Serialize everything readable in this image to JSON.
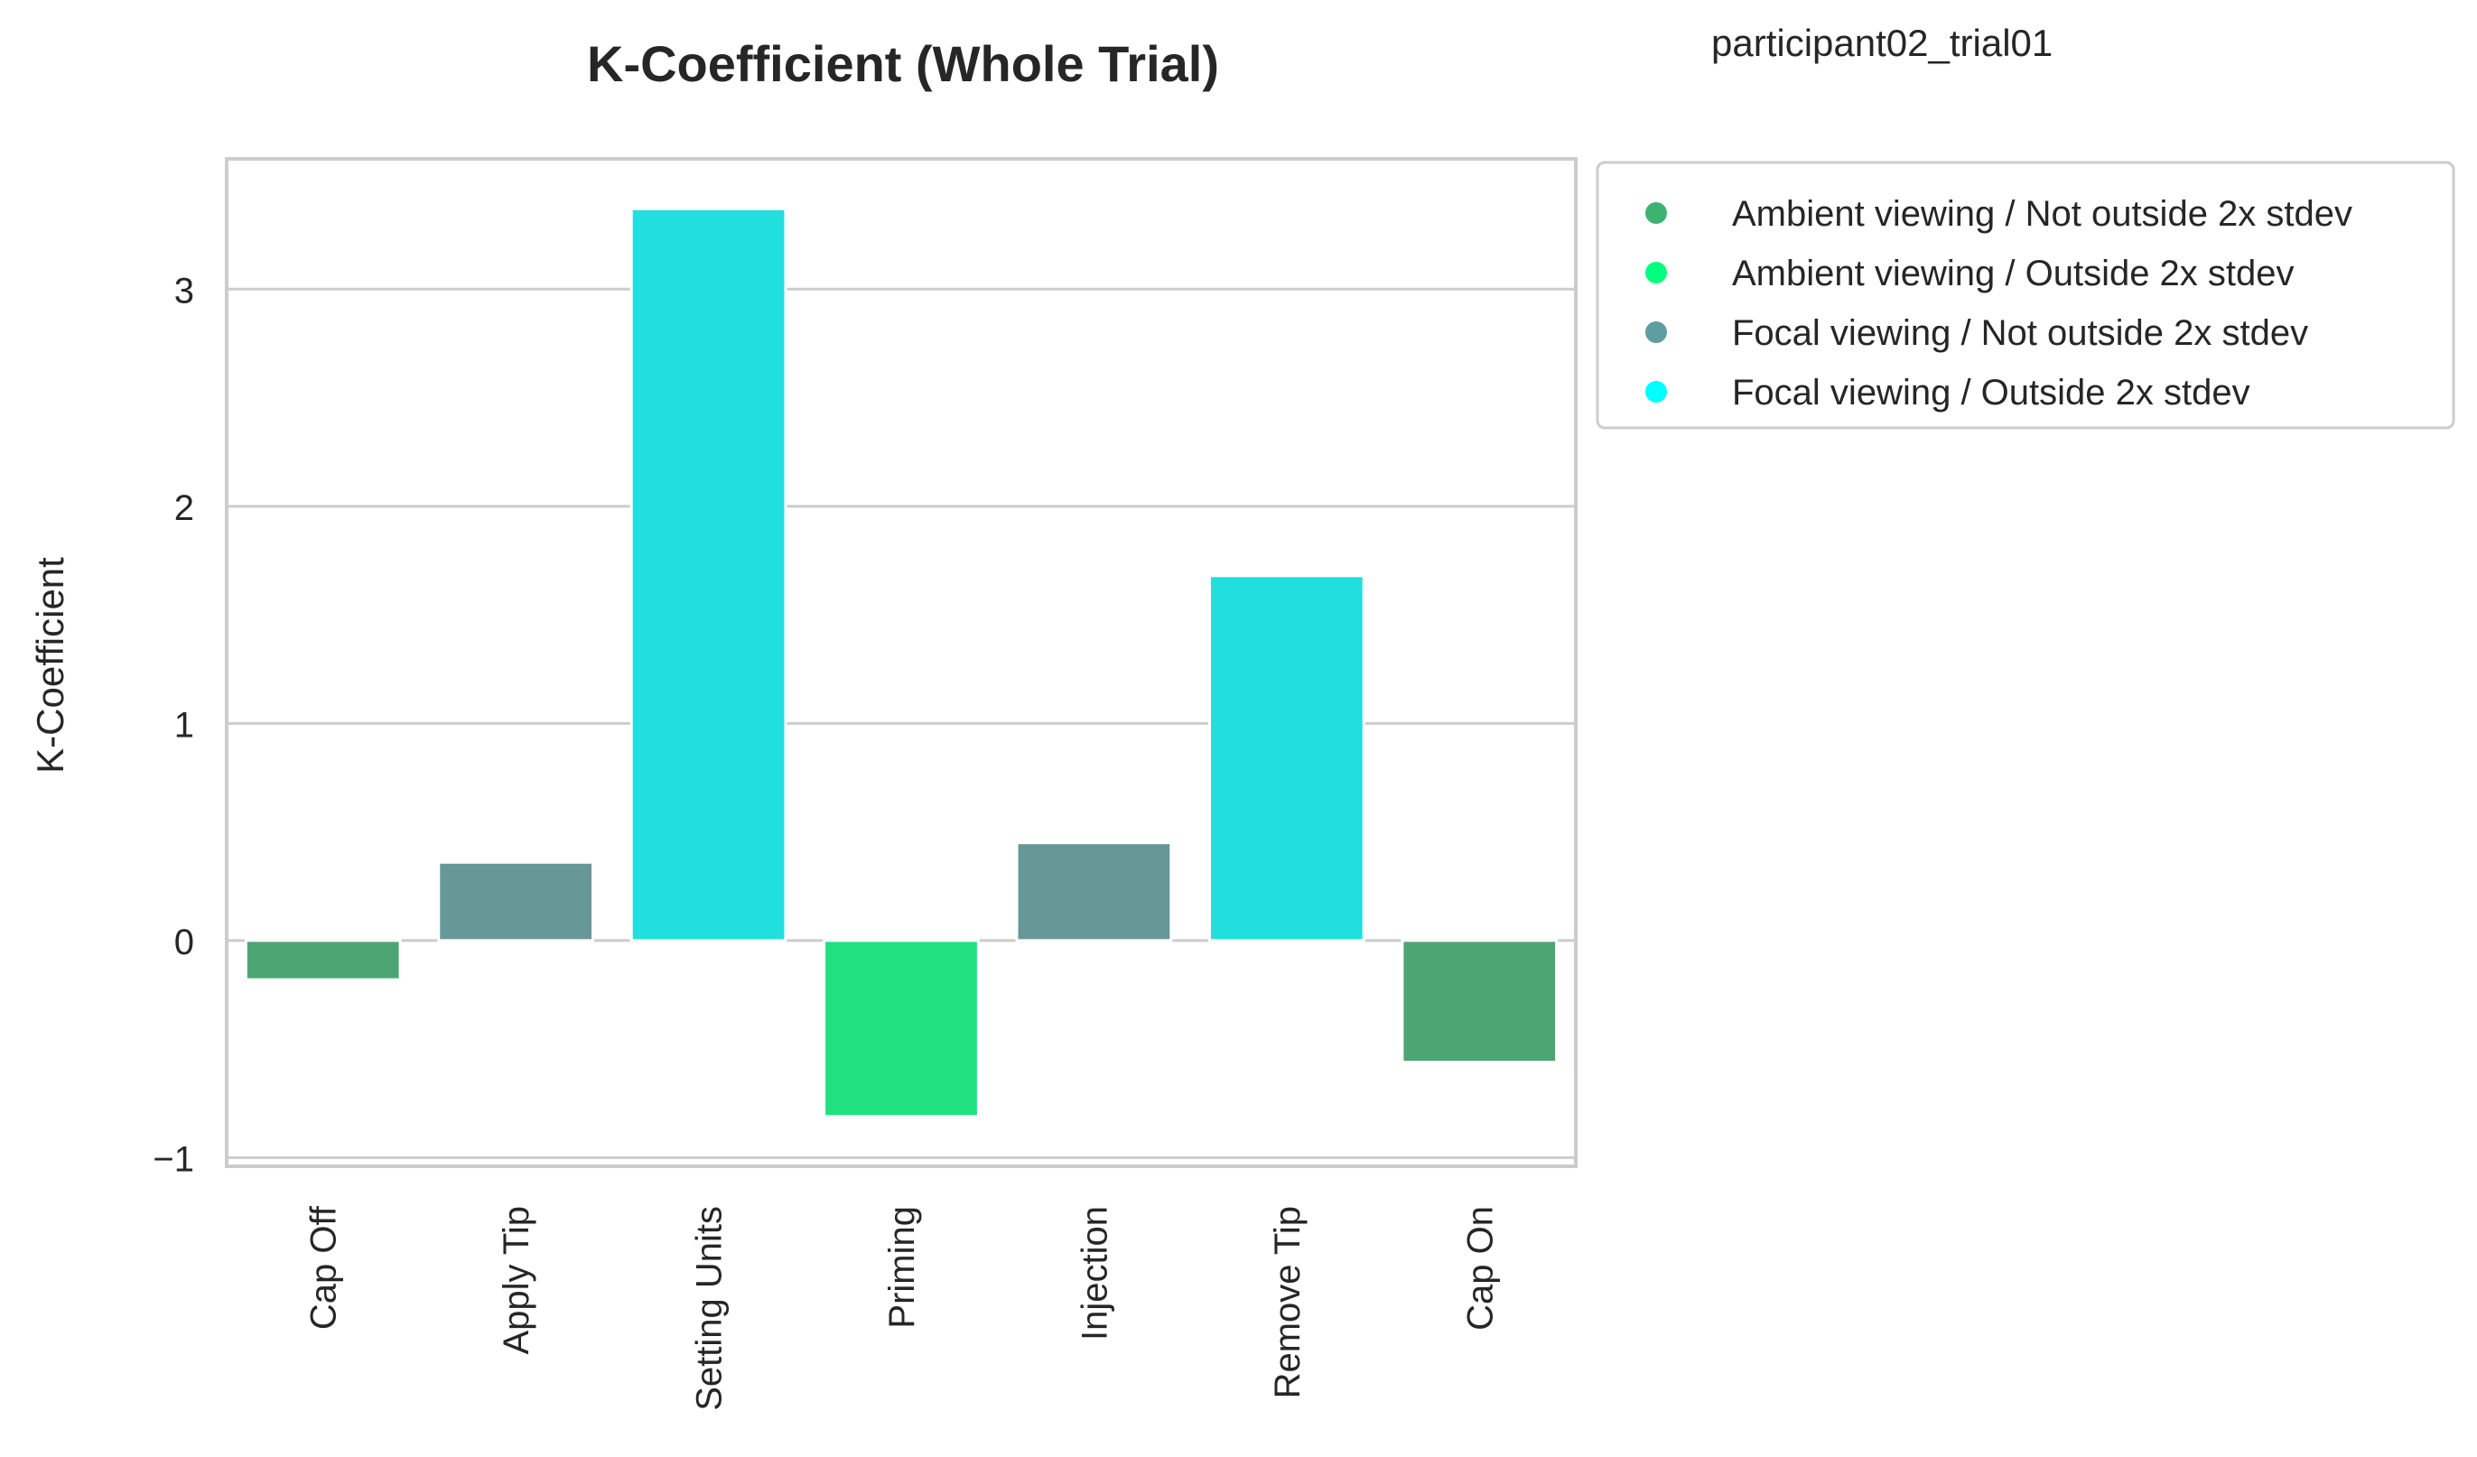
{
  "subtitle": "participant02_trial01",
  "chart_data": {
    "type": "bar",
    "title": "K-Coefficient (Whole Trial)",
    "xlabel": "",
    "ylabel": "K-Coefficient",
    "categories": [
      "Cap Off",
      "Apply Tip",
      "Setting Units",
      "Priming",
      "Injection",
      "Remove Tip",
      "Cap On"
    ],
    "values": [
      -0.18,
      0.36,
      3.37,
      -0.81,
      0.45,
      1.68,
      -0.56
    ],
    "bar_groups": [
      "Ambient viewing / Not outside 2x stdev",
      "Focal viewing / Not outside 2x stdev",
      "Focal viewing / Outside 2x stdev",
      "Ambient viewing / Outside 2x stdev",
      "Focal viewing / Not outside 2x stdev",
      "Focal viewing / Outside 2x stdev",
      "Ambient viewing / Not outside 2x stdev"
    ],
    "ylim": [
      -1.04,
      3.6
    ],
    "yticks": [
      -1,
      0,
      1,
      2,
      3
    ],
    "ytick_labels": [
      "−1",
      "0",
      "1",
      "2",
      "3"
    ],
    "grid": true,
    "legend_position": "outside top-right",
    "legend": [
      {
        "label": "Ambient viewing / Not outside 2x stdev",
        "color": "#3CB371"
      },
      {
        "label": "Ambient viewing / Outside 2x stdev",
        "color": "#00FF7F"
      },
      {
        "label": "Focal viewing / Not outside 2x stdev",
        "color": "#5F9EA0"
      },
      {
        "label": "Focal viewing / Outside 2x stdev",
        "color": "#00FFFF"
      }
    ],
    "bar_colors": {
      "Ambient viewing / Not outside 2x stdev": "#4CA674",
      "Ambient viewing / Outside 2x stdev": "#21E080",
      "Focal viewing / Not outside 2x stdev": "#679797",
      "Focal viewing / Outside 2x stdev": "#21DFDF"
    },
    "colors": {
      "grid": "#CCCCCC",
      "frame": "#CCCCCC",
      "text": "#262626"
    }
  }
}
